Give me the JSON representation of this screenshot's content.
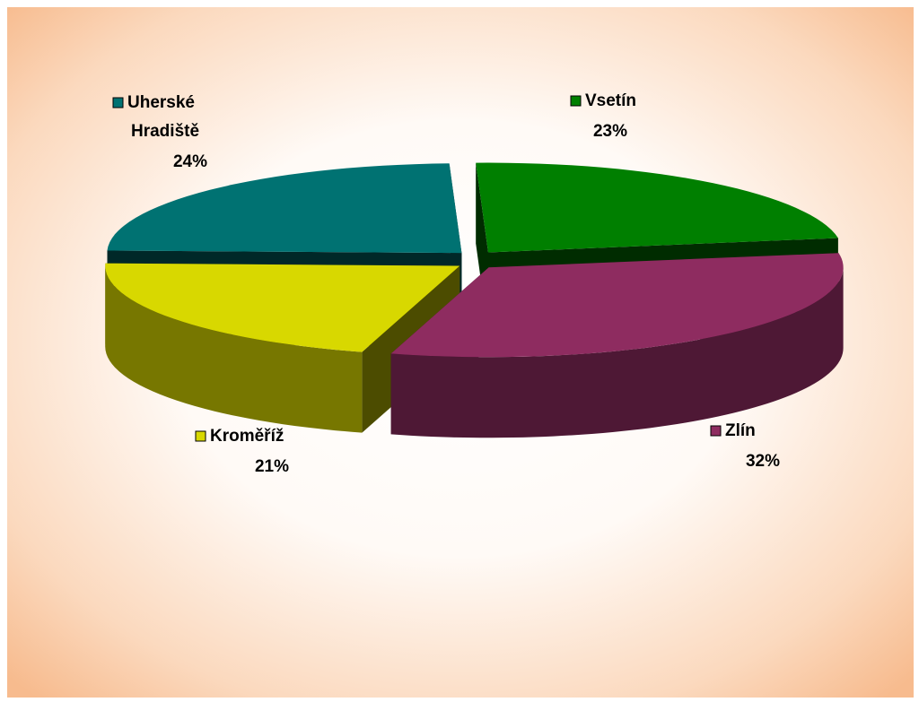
{
  "chart_data": {
    "type": "pie",
    "categories": [
      "Vsetín",
      "Zlín",
      "Kroměříž",
      "Uherské Hradiště"
    ],
    "values": [
      23,
      32,
      21,
      24
    ],
    "value_labels": [
      "23%",
      "32%",
      "21%",
      "24%"
    ],
    "colors": [
      "#007f00",
      "#8e2c60",
      "#d8d800",
      "#007272"
    ]
  }
}
